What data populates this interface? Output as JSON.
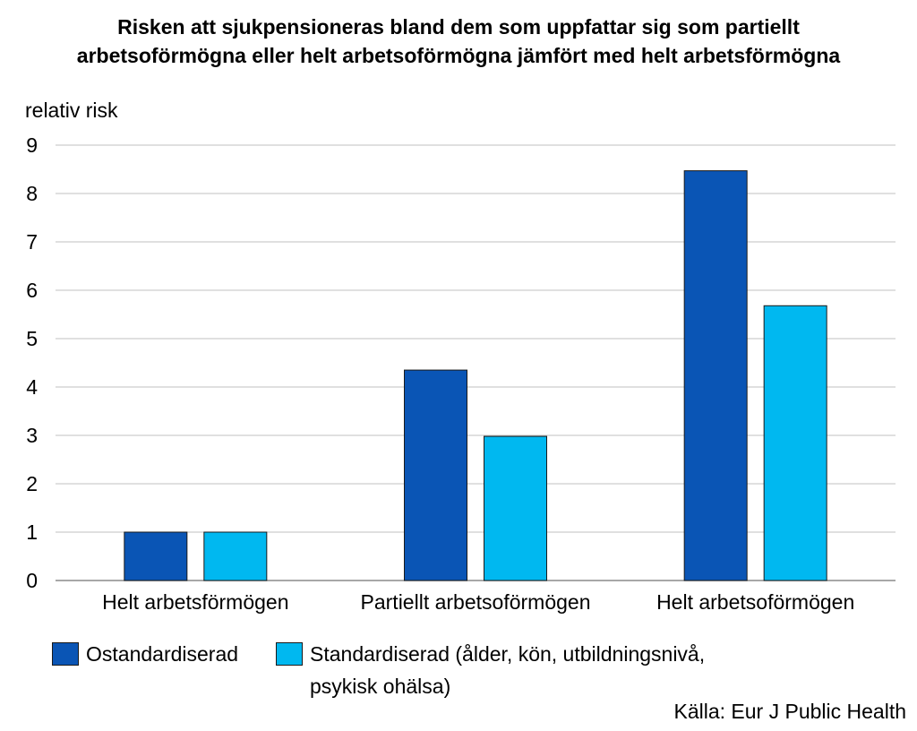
{
  "chart_data": {
    "type": "bar",
    "title_lines": [
      "Risken att sjukpensioneras bland dem som uppfattar sig som partiellt",
      "arbetsoförmögna eller helt arbetsoförmögna jämfört med helt arbetsförmögna"
    ],
    "ylabel": "relativ risk",
    "ylim": [
      0,
      9
    ],
    "yticks": [
      0,
      1,
      2,
      3,
      4,
      5,
      6,
      7,
      8,
      9
    ],
    "grid": true,
    "categories": [
      "Helt arbetsförmögen",
      "Partiellt arbetsoförmögen",
      "Helt arbetsoförmögen"
    ],
    "series": [
      {
        "name": "Ostandardiserad",
        "color": "#0a55b5",
        "values": [
          1.0,
          4.35,
          8.47
        ]
      },
      {
        "name": "Standardiserad (ålder, kön, utbildningsnivå, psykisk ohälsa)",
        "color": "#00b8f0",
        "values": [
          1.0,
          2.98,
          5.68
        ]
      }
    ],
    "legend_position": "bottom",
    "legend_lines": [
      "Standardiserad (ålder, kön, utbildningsnivå,",
      "psykisk ohälsa)"
    ],
    "source": "Källa: Eur J Public Health"
  }
}
